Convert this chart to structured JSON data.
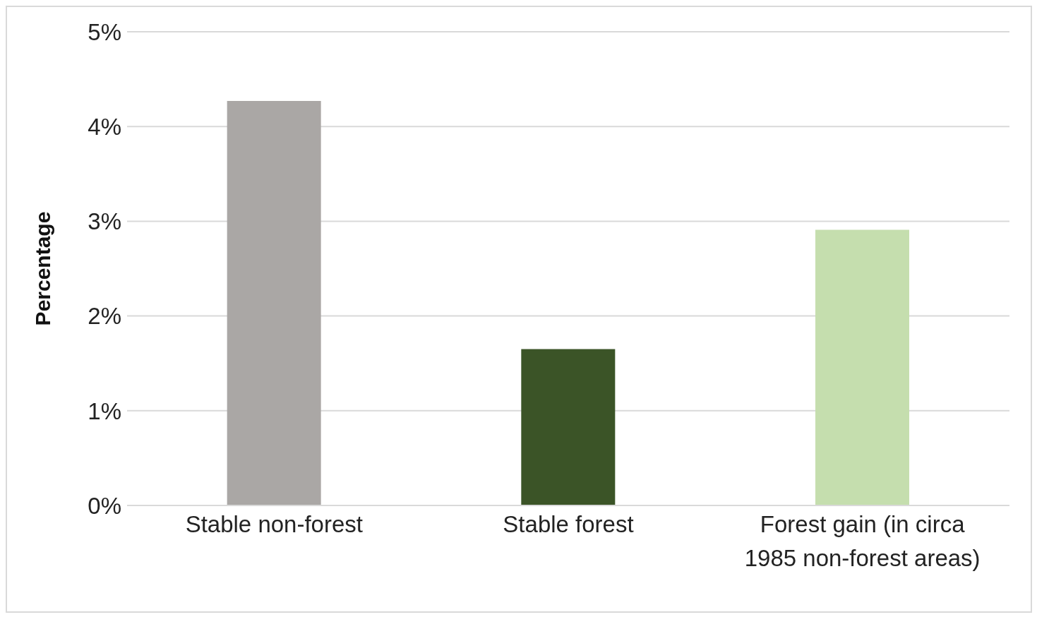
{
  "chart_data": {
    "type": "bar",
    "ylabel": "Percentage",
    "categories": [
      "Stable non-forest",
      "Stable forest",
      "Forest gain (in circa 1985 non-forest areas)"
    ],
    "values": [
      4.27,
      1.65,
      2.91
    ],
    "colors": [
      "#aaa7a5",
      "#3b5427",
      "#c5deae"
    ],
    "ylim": [
      0,
      5
    ],
    "yticks": [
      {
        "value": 0,
        "label": "0%"
      },
      {
        "value": 1,
        "label": "1%"
      },
      {
        "value": 2,
        "label": "2%"
      },
      {
        "value": 3,
        "label": "3%"
      },
      {
        "value": 4,
        "label": "4%"
      },
      {
        "value": 5,
        "label": "5%"
      }
    ],
    "grid": "y",
    "legend": false
  }
}
